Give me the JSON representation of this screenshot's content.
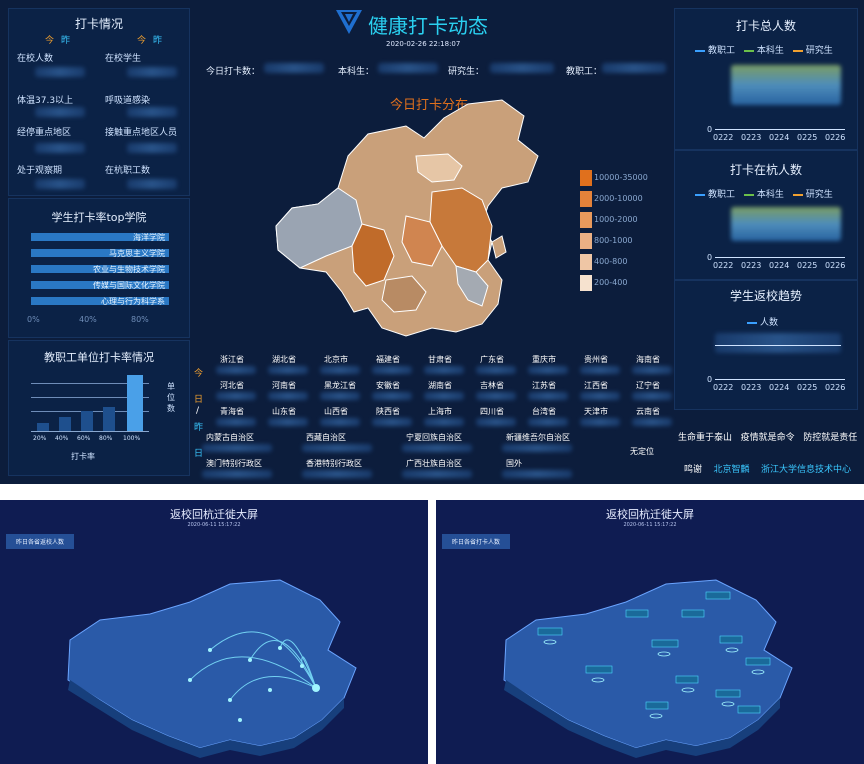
{
  "header": {
    "title": "健康打卡动态",
    "datetime": "2020-02-26 22:18:07"
  },
  "counters": [
    {
      "label": "今日打卡数："
    },
    {
      "label": "本科生："
    },
    {
      "label": "研究生："
    },
    {
      "label": "教职工："
    }
  ],
  "left_stats": {
    "title": "打卡情况",
    "today": "今",
    "yesterday": "昨",
    "items": [
      "在校人数",
      "在校学生",
      "体温37.3以上",
      "呼吸道感染",
      "经停重点地区",
      "接触重点地区人员",
      "处于观察期",
      "在杭职工数"
    ]
  },
  "college_chart": {
    "title": "学生打卡率top学院",
    "chart_data": {
      "type": "bar",
      "orientation": "horizontal",
      "categories": [
        "海洋学院",
        "马克思主义学院",
        "农业与生物技术学院",
        "传媒与国际文化学院",
        "心理与行为科学系"
      ],
      "ticks": [
        "0%",
        "40%",
        "80%"
      ]
    }
  },
  "staff_chart": {
    "title": "教职工单位打卡率情况",
    "chart_data": {
      "type": "bar",
      "xlabel": "打卡率",
      "ylabel": "单位数",
      "categories": [
        "20%",
        "40%",
        "60%",
        "80%",
        "100%"
      ]
    }
  },
  "map": {
    "title": "今日打卡分布",
    "legend": [
      {
        "label": "10000-35000",
        "color": "#e0701d"
      },
      {
        "label": "2000-10000",
        "color": "#e4823a"
      },
      {
        "label": "1000-2000",
        "color": "#e8995c"
      },
      {
        "label": "800-1000",
        "color": "#ebb084"
      },
      {
        "label": "400-800",
        "color": "#efc6a5"
      },
      {
        "label": "200-400",
        "color": "#f6e2cf"
      }
    ]
  },
  "province_table": {
    "side_labels": [
      "今",
      "日",
      "/",
      "昨",
      "日"
    ],
    "rows": [
      [
        "浙江省",
        "湖北省",
        "北京市",
        "福建省",
        "甘肃省",
        "广东省",
        "重庆市",
        "贵州省",
        "海南省"
      ],
      [
        "河北省",
        "河南省",
        "黑龙江省",
        "安徽省",
        "湖南省",
        "吉林省",
        "江苏省",
        "江西省",
        "辽宁省"
      ],
      [
        "青海省",
        "山东省",
        "山西省",
        "陕西省",
        "上海市",
        "四川省",
        "台湾省",
        "天津市",
        "云南省"
      ],
      [
        "内蒙古自治区",
        "西藏自治区",
        "宁夏回族自治区",
        "新疆维吾尔自治区"
      ],
      [
        "澳门特别行政区",
        "香港特别行政区",
        "广西壮族自治区",
        "国外"
      ]
    ],
    "unknown": "无定位"
  },
  "right": {
    "total_title": "打卡总人数",
    "inhz_title": "打卡在杭人数",
    "trend_title": "学生返校趋势",
    "legend": [
      {
        "label": "教职工",
        "color": "#3aa0ff"
      },
      {
        "label": "本科生",
        "color": "#6bc04a"
      },
      {
        "label": "研究生",
        "color": "#f0a030"
      }
    ],
    "trend_legend": "人数",
    "dates": [
      "0222",
      "0223",
      "0224",
      "0225",
      "0226"
    ],
    "zero": "0"
  },
  "footer": {
    "slogans": [
      "生命重于泰山",
      "疫情就是命令",
      "防控就是责任"
    ],
    "thanks": "鸣谢",
    "partners": [
      "北京智麟",
      "浙江大学信息技术中心"
    ]
  },
  "bottom_left": {
    "title": "返校回杭迁徙大屏",
    "datetime": "2020-06-11 15:17:22",
    "tab": "昨日各省返校人数"
  },
  "bottom_right": {
    "title": "返校回杭迁徙大屏",
    "datetime": "2020-06-11 15:17:22",
    "tab": "昨日各省打卡人数"
  }
}
